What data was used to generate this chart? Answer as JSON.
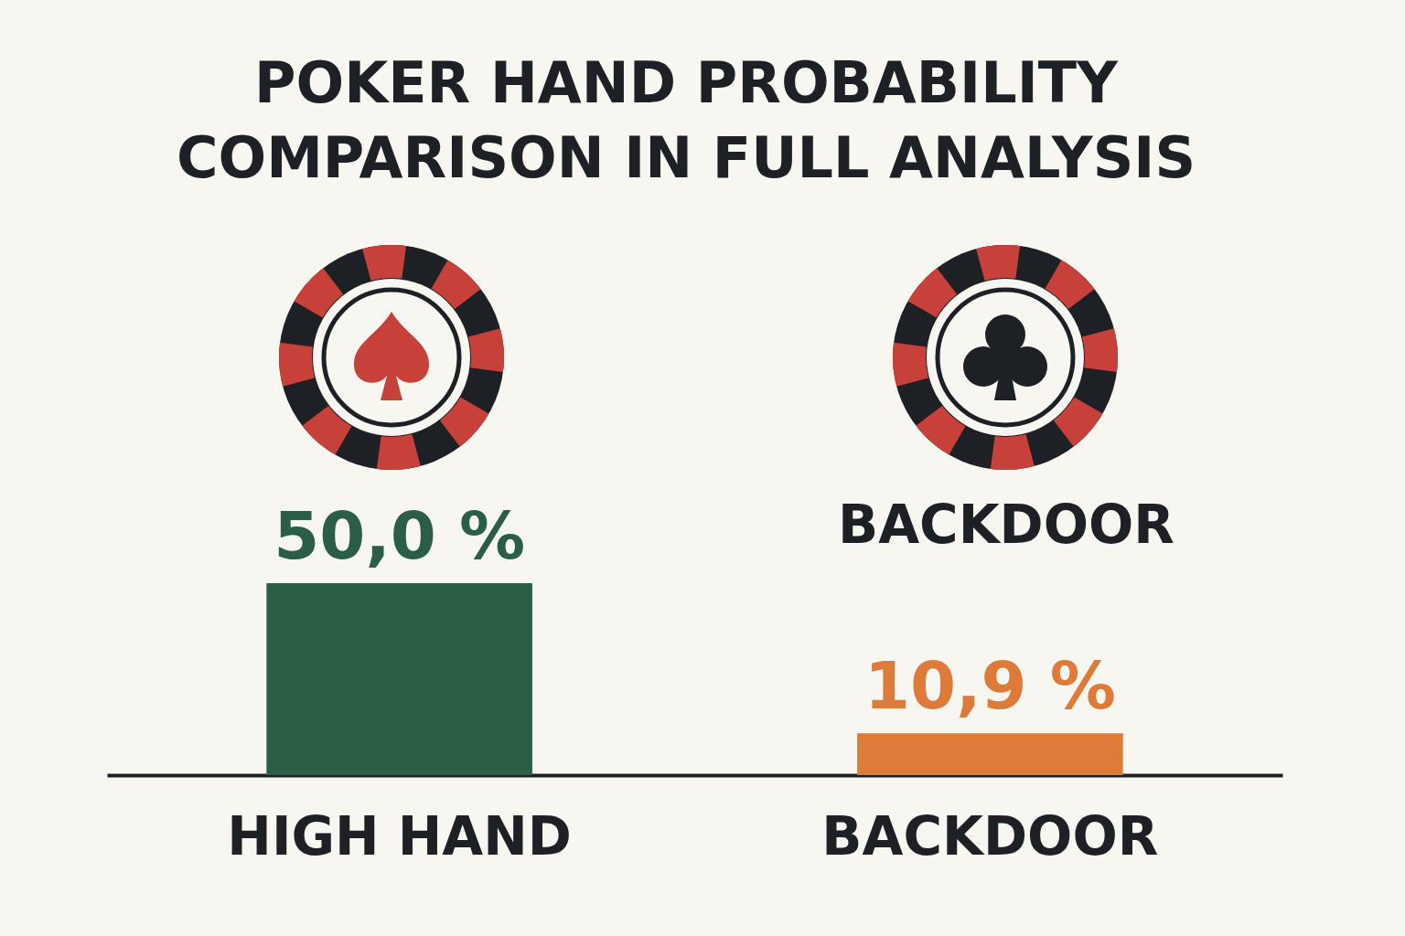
{
  "chart_data": {
    "type": "bar",
    "title": "POKER HAND PROBABILITY COMPARISON IN FULL ANALYSIS",
    "categories": [
      "HIGH HAND",
      "BACKDOOR"
    ],
    "values": [
      50.0,
      10.9
    ],
    "colors": [
      "#2a5f45",
      "#df7b39"
    ],
    "value_labels": [
      "50,0 %",
      "10,9 %"
    ],
    "annotations": [
      "BACKDOOR"
    ],
    "grid": false
  }
}
